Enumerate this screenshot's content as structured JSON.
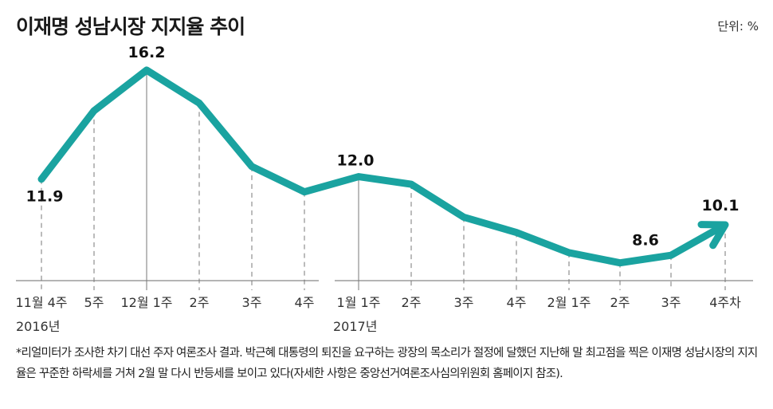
{
  "title": "이재명 성남시장 지지율 추이",
  "unit": "단위: %",
  "chart_data": {
    "type": "line",
    "title": "이재명 성남시장 지지율 추이",
    "ylabel": "%",
    "categories": [
      "11월 4주",
      "5주",
      "12월 1주",
      "2주",
      "3주",
      "4주",
      "1월 1주",
      "2주",
      "3주",
      "4주",
      "2월 1주",
      "2주",
      "3주",
      "4주차"
    ],
    "year_labels": [
      {
        "index": 0,
        "label": "2016년"
      },
      {
        "index": 6,
        "label": "2017년"
      }
    ],
    "values": [
      11.9,
      14.6,
      16.2,
      14.9,
      12.4,
      11.4,
      12.0,
      11.7,
      10.4,
      9.8,
      9.0,
      8.6,
      8.9,
      10.1
    ],
    "data_labels": {
      "0": "11.9",
      "2": "16.2",
      "6": "12.0",
      "11": "8.6",
      "13": "10.1"
    },
    "color": "#1aa3a0",
    "ylim": [
      7,
      17
    ]
  },
  "footnote": "*리얼미터가 조사한 차기 대선 주자 여론조사 결과. 박근혜 대통령의 퇴진을 요구하는 광장의 목소리가 절정에 달했던 지난해 말 최고점을 찍은 이재명 성남시장의 지지율은 꾸준한 하락세를 거쳐 2월 말 다시 반등세를 보이고 있다(자세한 사항은 중앙선거여론조사심의위원회 홈페이지 참조)."
}
